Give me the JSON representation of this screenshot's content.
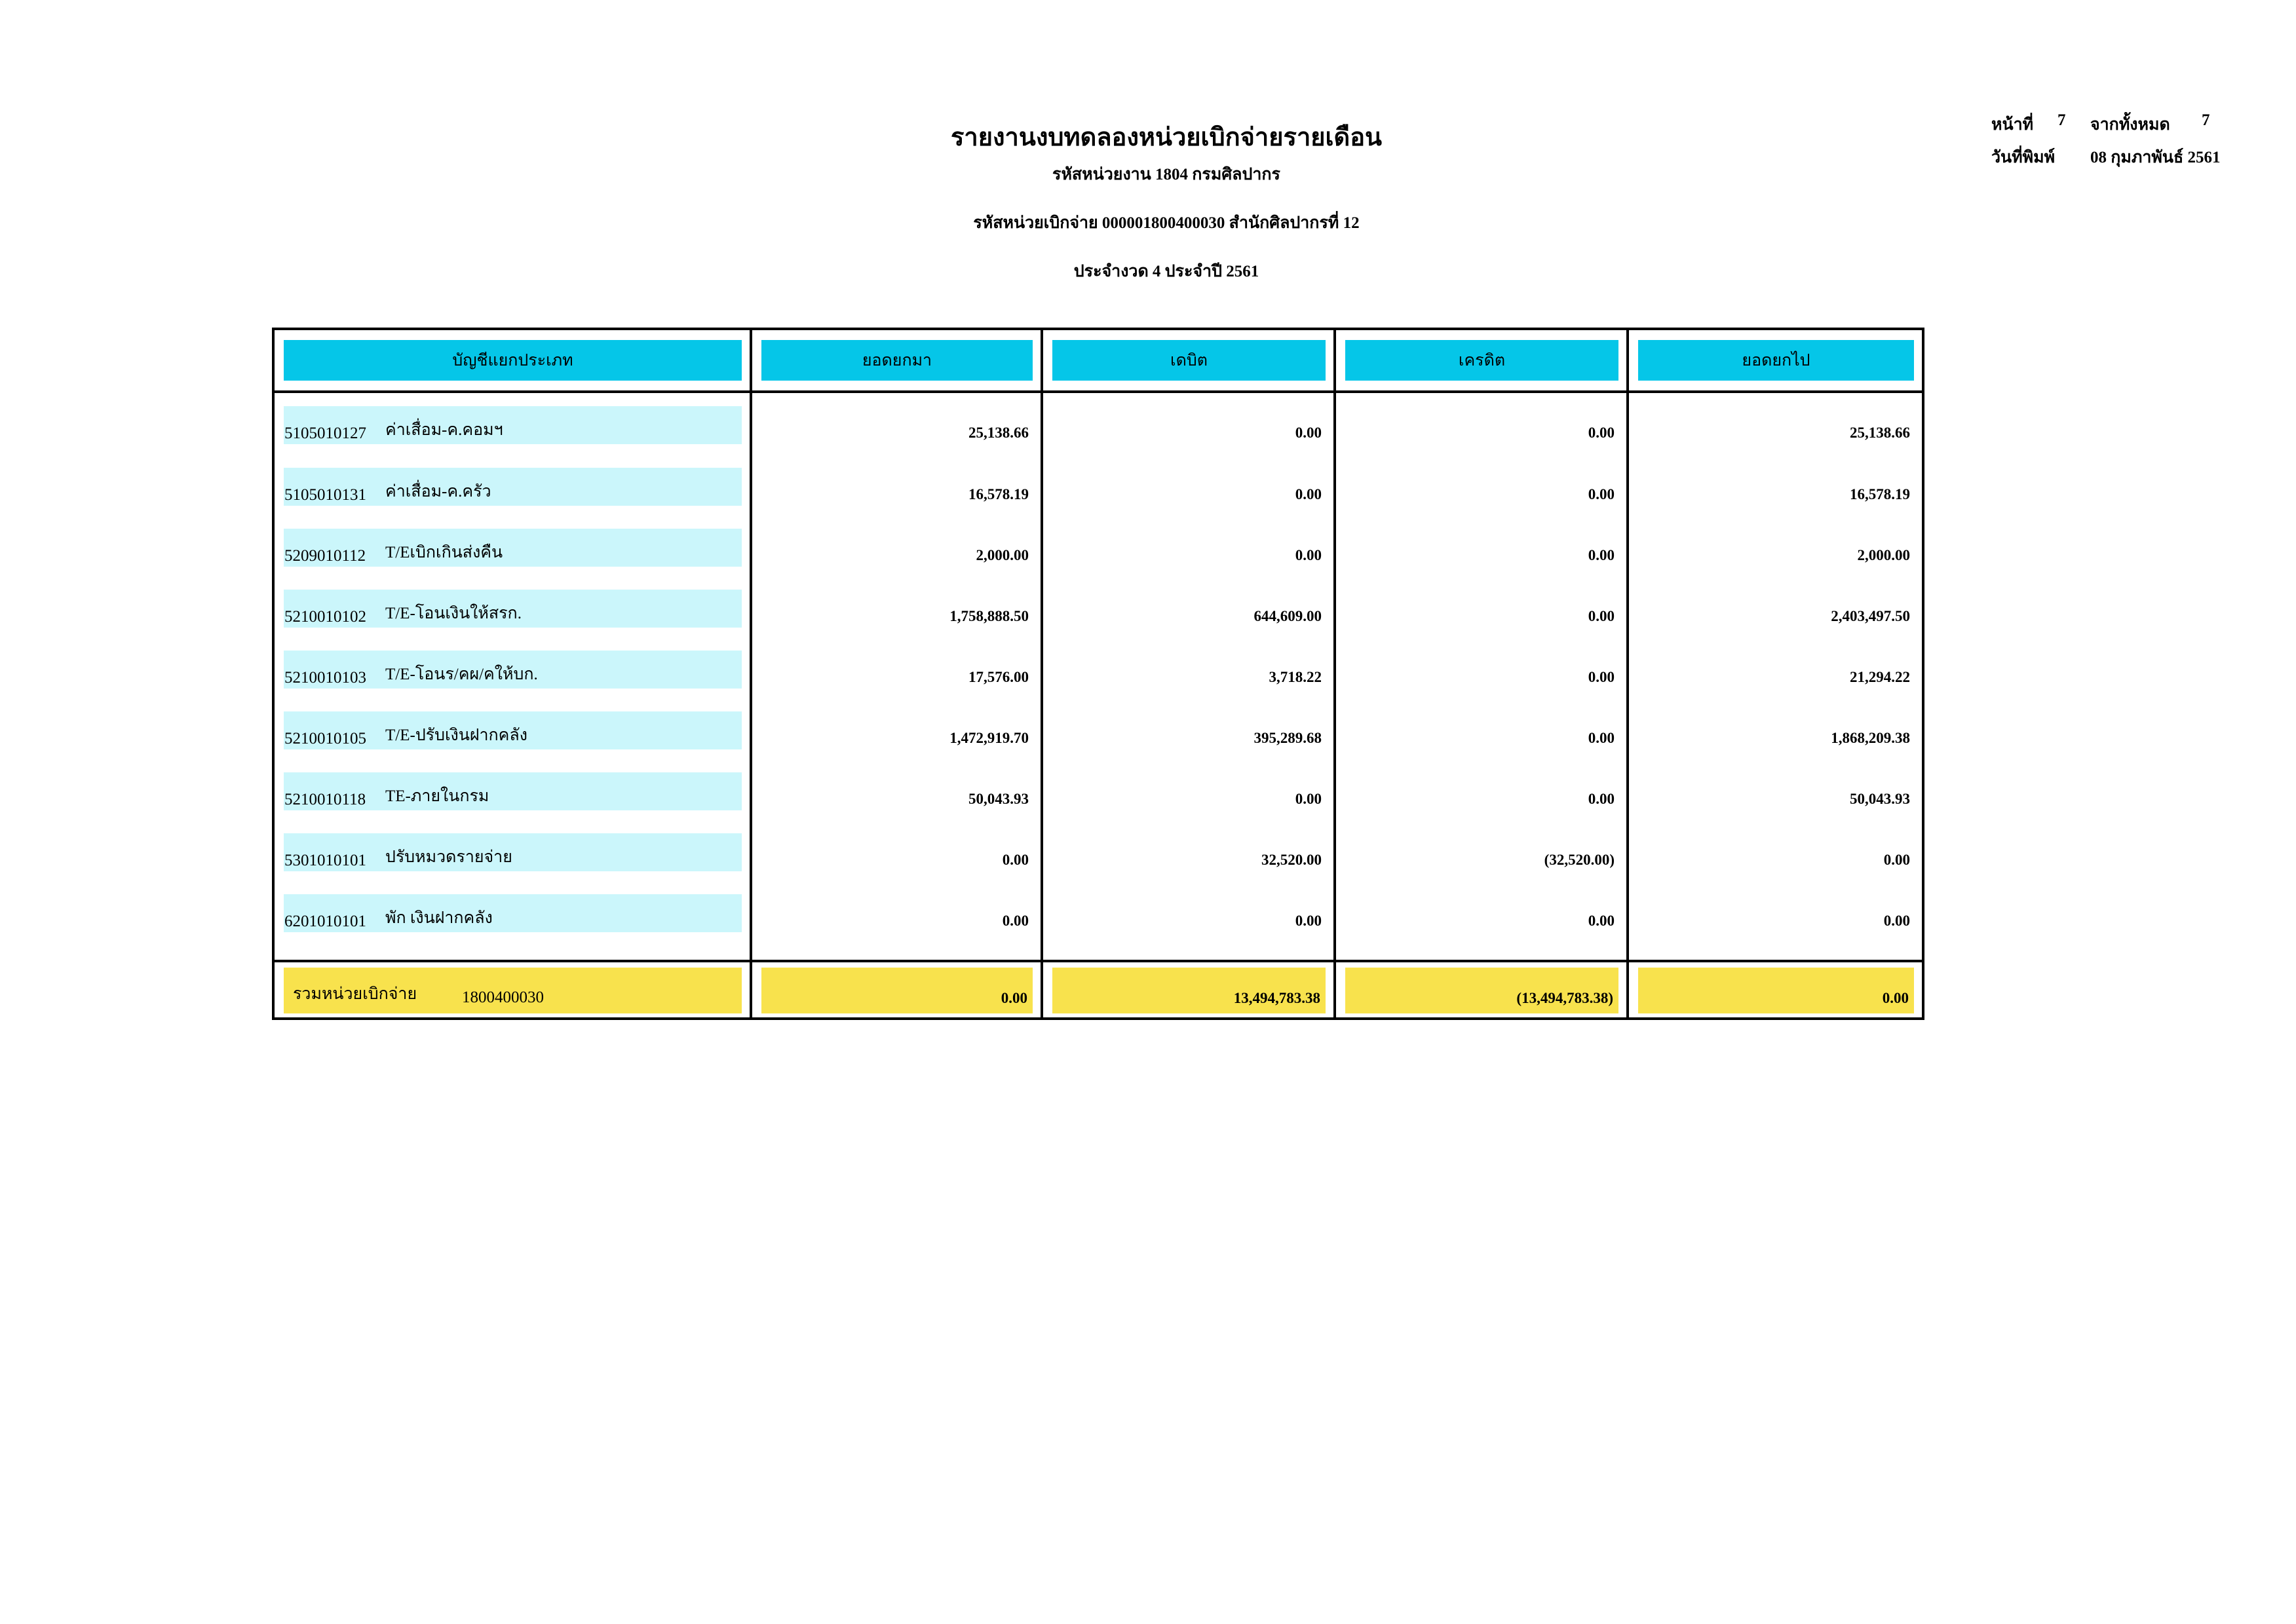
{
  "report": {
    "title": "รายงานงบทดลองหน่วยเบิกจ่ายรายเดือน",
    "agency_line": "รหัสหน่วยงาน 1804 กรมศิลปากร",
    "disbursing_unit_line": "รหัสหน่วยเบิกจ่าย 000001800400030 สำนักศิลปากรที่ 12",
    "period_line": "ประจำงวด 4 ประจำปี 2561"
  },
  "page_info": {
    "page_label": "หน้าที่",
    "page_number": "7",
    "total_label": "จากทั้งหมด",
    "total_pages": "7",
    "print_date_label": "วันที่พิมพ์",
    "print_date": "08 กุมภาพันธ์ 2561"
  },
  "table": {
    "headers": [
      "บัญชีแยกประเภท",
      "ยอดยกมา",
      "เดบิต",
      "เครดิต",
      "ยอดยกไป"
    ],
    "rows": [
      {
        "code": "5105010127",
        "name": "ค่าเสื่อม-ค.คอมฯ",
        "brought_forward": "25,138.66",
        "debit": "0.00",
        "credit": "0.00",
        "carried_forward": "25,138.66"
      },
      {
        "code": "5105010131",
        "name": "ค่าเสื่อม-ค.ครัว",
        "brought_forward": "16,578.19",
        "debit": "0.00",
        "credit": "0.00",
        "carried_forward": "16,578.19"
      },
      {
        "code": "5209010112",
        "name": "T/Eเบิกเกินส่งคืน",
        "brought_forward": "2,000.00",
        "debit": "0.00",
        "credit": "0.00",
        "carried_forward": "2,000.00"
      },
      {
        "code": "5210010102",
        "name": "T/E-โอนเงินให้สรก.",
        "brought_forward": "1,758,888.50",
        "debit": "644,609.00",
        "credit": "0.00",
        "carried_forward": "2,403,497.50"
      },
      {
        "code": "5210010103",
        "name": "T/E-โอนร/คผ/คให้บก.",
        "brought_forward": "17,576.00",
        "debit": "3,718.22",
        "credit": "0.00",
        "carried_forward": "21,294.22"
      },
      {
        "code": "5210010105",
        "name": "T/E-ปรับเงินฝากคลัง",
        "brought_forward": "1,472,919.70",
        "debit": "395,289.68",
        "credit": "0.00",
        "carried_forward": "1,868,209.38"
      },
      {
        "code": "5210010118",
        "name": "TE-ภายในกรม",
        "brought_forward": "50,043.93",
        "debit": "0.00",
        "credit": "0.00",
        "carried_forward": "50,043.93"
      },
      {
        "code": "5301010101",
        "name": "ปรับหมวดรายจ่าย",
        "brought_forward": "0.00",
        "debit": "32,520.00",
        "credit": "(32,520.00)",
        "carried_forward": "0.00"
      },
      {
        "code": "6201010101",
        "name": "พัก เงินฝากคลัง",
        "brought_forward": "0.00",
        "debit": "0.00",
        "credit": "0.00",
        "carried_forward": "0.00"
      }
    ],
    "total": {
      "label": "รวมหน่วยเบิกจ่าย",
      "unit_code": "1800400030",
      "brought_forward": "0.00",
      "debit": "13,494,783.38",
      "credit": "(13,494,783.38)",
      "carried_forward": "0.00"
    }
  },
  "colors": {
    "header_fill": "#05c6e8",
    "row_fill": "#cbf6fb",
    "total_fill": "#f8e24d"
  }
}
